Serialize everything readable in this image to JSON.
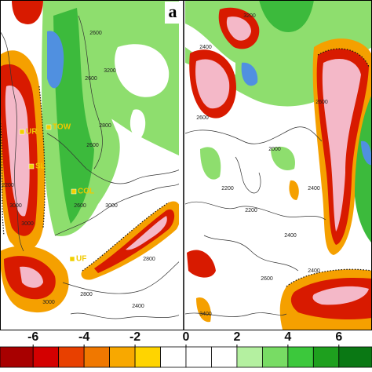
{
  "panels": [
    {
      "label": "a",
      "stations": [
        "TOW",
        "UR",
        "SL",
        "COL",
        "UF"
      ],
      "contour_labels": [
        "2600",
        "2600",
        "3200",
        "2800",
        "2600",
        "2200",
        "3000",
        "2600",
        "3000",
        "3000",
        "2800",
        "3000",
        "2400",
        "2800"
      ]
    },
    {
      "contour_labels": [
        "2400",
        "3200",
        "2600",
        "2000",
        "2200",
        "2400",
        "2200",
        "2400",
        "3400",
        "2400",
        "2600",
        "2600"
      ]
    }
  ],
  "colorbar": {
    "lim": [
      -7.3,
      7.3
    ],
    "ticks": [
      -6,
      -4,
      -2,
      0,
      2,
      4,
      6
    ],
    "bins": [
      -7.3,
      -6,
      -5,
      -4,
      -3,
      -2,
      -1,
      0,
      1,
      2,
      3,
      4,
      5,
      6,
      7.3
    ],
    "colors": [
      "#a80000",
      "#d40000",
      "#e84000",
      "#f07800",
      "#f8a800",
      "#ffd400",
      "#ffffff",
      "#ffffff",
      "#ffffff",
      "#b4f0a0",
      "#78dc64",
      "#3cc83c",
      "#1ea01e",
      "#0a7814"
    ]
  }
}
